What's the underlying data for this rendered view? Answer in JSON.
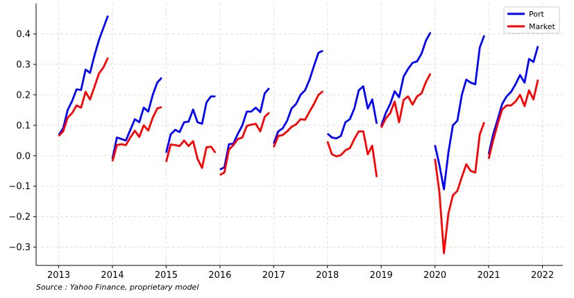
{
  "chart_data": {
    "type": "line",
    "title": "",
    "xlabel": "",
    "ylabel": "",
    "xlim": [
      2012.58,
      2022.38
    ],
    "ylim": [
      -0.36,
      0.5
    ],
    "x_ticks": [
      2013,
      2014,
      2015,
      2016,
      2017,
      2018,
      2019,
      2020,
      2021,
      2022
    ],
    "y_ticks": [
      -0.3,
      -0.2,
      -0.1,
      0.0,
      0.1,
      0.2,
      0.3,
      0.4
    ],
    "grid": true,
    "legend_position": "top-right",
    "colors": {
      "Port": "#0000ff",
      "Market": "#ff0000"
    },
    "series": [
      {
        "name": "Port",
        "segments": [
          {
            "x": [
              2013.0,
              2013.083,
              2013.167,
              2013.25,
              2013.333,
              2013.417,
              2013.5,
              2013.583,
              2013.667,
              2013.75,
              2013.833,
              2013.917
            ],
            "y": [
              0.068,
              0.09,
              0.15,
              0.18,
              0.218,
              0.216,
              0.283,
              0.272,
              0.33,
              0.38,
              0.42,
              0.46
            ]
          },
          {
            "x": [
              2014.0,
              2014.083,
              2014.167,
              2014.25,
              2014.333,
              2014.417,
              2014.5,
              2014.583,
              2014.667,
              2014.75,
              2014.833,
              2014.917
            ],
            "y": [
              -0.01,
              0.06,
              0.055,
              0.05,
              0.085,
              0.12,
              0.11,
              0.158,
              0.145,
              0.2,
              0.24,
              0.256
            ]
          },
          {
            "x": [
              2015.0,
              2015.083,
              2015.167,
              2015.25,
              2015.333,
              2015.417,
              2015.5,
              2015.583,
              2015.667,
              2015.75,
              2015.833,
              2015.917
            ],
            "y": [
              0.01,
              0.07,
              0.085,
              0.078,
              0.11,
              0.112,
              0.152,
              0.11,
              0.105,
              0.175,
              0.195,
              0.195
            ]
          },
          {
            "x": [
              2016.0,
              2016.083,
              2016.167,
              2016.25,
              2016.333,
              2016.417,
              2016.5,
              2016.583,
              2016.667,
              2016.75,
              2016.833,
              2016.917
            ],
            "y": [
              -0.045,
              -0.038,
              0.038,
              0.04,
              0.072,
              0.1,
              0.145,
              0.145,
              0.158,
              0.143,
              0.205,
              0.222
            ]
          },
          {
            "x": [
              2017.0,
              2017.083,
              2017.167,
              2017.25,
              2017.333,
              2017.417,
              2017.5,
              2017.583,
              2017.667,
              2017.75,
              2017.833,
              2017.917
            ],
            "y": [
              0.04,
              0.08,
              0.09,
              0.115,
              0.155,
              0.17,
              0.2,
              0.215,
              0.25,
              0.295,
              0.338,
              0.345
            ]
          },
          {
            "x": [
              2018.0,
              2018.083,
              2018.167,
              2018.25,
              2018.333,
              2018.417,
              2018.5,
              2018.583,
              2018.667,
              2018.75,
              2018.833,
              2018.917
            ],
            "y": [
              0.073,
              0.06,
              0.057,
              0.065,
              0.11,
              0.12,
              0.155,
              0.215,
              0.228,
              0.155,
              0.185,
              0.105
            ]
          },
          {
            "x": [
              2019.0,
              2019.083,
              2019.167,
              2019.25,
              2019.333,
              2019.417,
              2019.5,
              2019.583,
              2019.667,
              2019.75,
              2019.833,
              2019.917
            ],
            "y": [
              0.098,
              0.14,
              0.17,
              0.212,
              0.192,
              0.26,
              0.285,
              0.305,
              0.31,
              0.335,
              0.378,
              0.405
            ]
          },
          {
            "x": [
              2020.0,
              2020.083,
              2020.167,
              2020.25,
              2020.333,
              2020.417,
              2020.5,
              2020.583,
              2020.667,
              2020.75,
              2020.833,
              2020.917
            ],
            "y": [
              0.035,
              -0.03,
              -0.11,
              0.01,
              0.1,
              0.115,
              0.2,
              0.25,
              0.24,
              0.235,
              0.355,
              0.395
            ]
          },
          {
            "x": [
              2021.0,
              2021.083,
              2021.167,
              2021.25,
              2021.333,
              2021.417,
              2021.5,
              2021.583,
              2021.667,
              2021.75,
              2021.833,
              2021.917
            ],
            "y": [
              0.005,
              0.07,
              0.12,
              0.17,
              0.195,
              0.21,
              0.235,
              0.265,
              0.24,
              0.318,
              0.308,
              0.36
            ]
          }
        ]
      },
      {
        "name": "Market",
        "segments": [
          {
            "x": [
              2013.0,
              2013.083,
              2013.167,
              2013.25,
              2013.333,
              2013.417,
              2013.5,
              2013.583,
              2013.667,
              2013.75,
              2013.833,
              2013.917
            ],
            "y": [
              0.065,
              0.08,
              0.125,
              0.14,
              0.165,
              0.158,
              0.21,
              0.185,
              0.227,
              0.27,
              0.29,
              0.322
            ]
          },
          {
            "x": [
              2014.0,
              2014.083,
              2014.167,
              2014.25,
              2014.333,
              2014.417,
              2014.5,
              2014.583,
              2014.667,
              2014.75,
              2014.833,
              2014.917
            ],
            "y": [
              -0.018,
              0.035,
              0.038,
              0.035,
              0.06,
              0.082,
              0.062,
              0.1,
              0.083,
              0.125,
              0.155,
              0.16
            ]
          },
          {
            "x": [
              2015.0,
              2015.083,
              2015.167,
              2015.25,
              2015.333,
              2015.417,
              2015.5,
              2015.583,
              2015.667,
              2015.75,
              2015.833,
              2015.917
            ],
            "y": [
              -0.02,
              0.037,
              0.035,
              0.032,
              0.05,
              0.032,
              0.048,
              -0.01,
              -0.04,
              0.028,
              0.03,
              0.01
            ]
          },
          {
            "x": [
              2016.0,
              2016.083,
              2016.167,
              2016.25,
              2016.333,
              2016.417,
              2016.5,
              2016.583,
              2016.667,
              2016.75,
              2016.833,
              2016.917
            ],
            "y": [
              -0.063,
              -0.055,
              0.02,
              0.035,
              0.055,
              0.06,
              0.098,
              0.102,
              0.105,
              0.08,
              0.128,
              0.142
            ]
          },
          {
            "x": [
              2017.0,
              2017.083,
              2017.167,
              2017.25,
              2017.333,
              2017.417,
              2017.5,
              2017.583,
              2017.667,
              2017.75,
              2017.833,
              2017.917
            ],
            "y": [
              0.028,
              0.065,
              0.068,
              0.08,
              0.095,
              0.103,
              0.12,
              0.118,
              0.145,
              0.17,
              0.2,
              0.212
            ]
          },
          {
            "x": [
              2018.0,
              2018.083,
              2018.167,
              2018.25,
              2018.333,
              2018.417,
              2018.5,
              2018.583,
              2018.667,
              2018.75,
              2018.833,
              2018.917
            ],
            "y": [
              0.047,
              0.005,
              -0.002,
              0.002,
              0.018,
              0.025,
              0.055,
              0.08,
              0.08,
              0.005,
              0.033,
              -0.07
            ]
          },
          {
            "x": [
              2019.0,
              2019.083,
              2019.167,
              2019.25,
              2019.333,
              2019.417,
              2019.5,
              2019.583,
              2019.667,
              2019.75,
              2019.833,
              2019.917
            ],
            "y": [
              0.092,
              0.122,
              0.14,
              0.178,
              0.11,
              0.183,
              0.195,
              0.168,
              0.195,
              0.205,
              0.242,
              0.27
            ]
          },
          {
            "x": [
              2020.0,
              2020.083,
              2020.167,
              2020.25,
              2020.333,
              2020.417,
              2020.5,
              2020.583,
              2020.667,
              2020.75,
              2020.833,
              2020.917
            ],
            "y": [
              -0.01,
              -0.12,
              -0.32,
              -0.19,
              -0.13,
              -0.115,
              -0.07,
              -0.028,
              -0.05,
              -0.055,
              0.07,
              0.11
            ]
          },
          {
            "x": [
              2021.0,
              2021.083,
              2021.167,
              2021.25,
              2021.333,
              2021.417,
              2021.5,
              2021.583,
              2021.667,
              2021.75,
              2021.833,
              2021.917
            ],
            "y": [
              -0.01,
              0.05,
              0.105,
              0.152,
              0.165,
              0.165,
              0.178,
              0.2,
              0.163,
              0.215,
              0.185,
              0.25
            ]
          }
        ]
      }
    ]
  },
  "source_text": "Source : Yahoo Finance, proprietary model"
}
